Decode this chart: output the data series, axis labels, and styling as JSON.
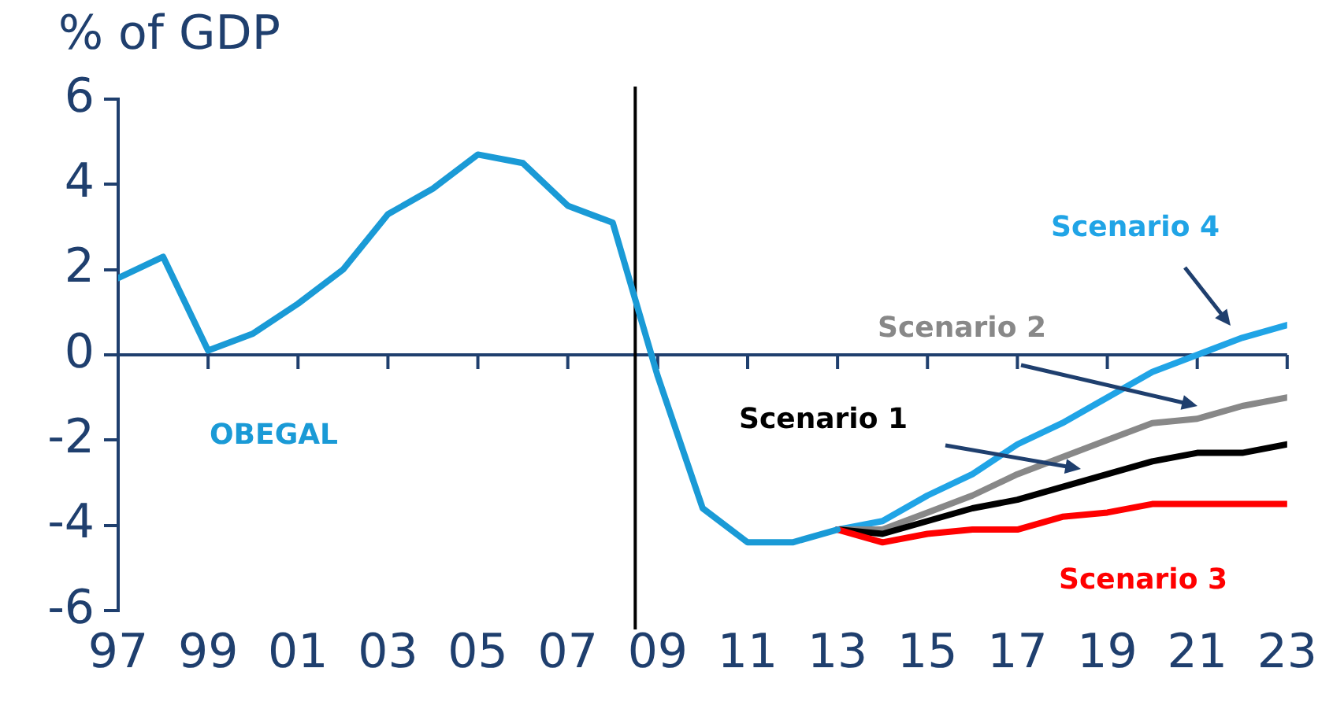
{
  "chart_data": {
    "type": "line",
    "ylabel": "% of GDP",
    "x": [
      1997,
      1998,
      1999,
      2000,
      2001,
      2002,
      2003,
      2004,
      2005,
      2006,
      2007,
      2008,
      2009,
      2010,
      2011,
      2012,
      2013,
      2014,
      2015,
      2016,
      2017,
      2018,
      2019,
      2020,
      2021,
      2022,
      2023
    ],
    "series": [
      {
        "name": "OBEGAL",
        "color": "#1a9ad6",
        "values": [
          1.8,
          2.3,
          0.1,
          0.5,
          1.2,
          2.0,
          3.3,
          3.9,
          4.7,
          4.5,
          3.5,
          3.1,
          -0.5,
          -3.6,
          -4.4,
          -4.4,
          -4.1,
          null,
          null,
          null,
          null,
          null,
          null,
          null,
          null,
          null,
          null
        ]
      },
      {
        "name": "Scenario 3",
        "color": "#ff0000",
        "values": [
          null,
          null,
          null,
          null,
          null,
          null,
          null,
          null,
          null,
          null,
          null,
          null,
          null,
          null,
          null,
          null,
          -4.1,
          -4.4,
          -4.2,
          -4.1,
          -4.1,
          -3.8,
          -3.7,
          -3.5,
          -3.5,
          -3.5,
          -3.5
        ]
      },
      {
        "name": "Scenario 1",
        "color": "#000000",
        "values": [
          null,
          null,
          null,
          null,
          null,
          null,
          null,
          null,
          null,
          null,
          null,
          null,
          null,
          null,
          null,
          null,
          -4.1,
          -4.2,
          -3.9,
          -3.6,
          -3.4,
          -3.1,
          -2.8,
          -2.5,
          -2.3,
          -2.3,
          -2.1
        ]
      },
      {
        "name": "Scenario 2",
        "color": "#888888",
        "values": [
          null,
          null,
          null,
          null,
          null,
          null,
          null,
          null,
          null,
          null,
          null,
          null,
          null,
          null,
          null,
          null,
          -4.1,
          -4.1,
          -3.7,
          -3.3,
          -2.8,
          -2.4,
          -2.0,
          -1.6,
          -1.5,
          -1.2,
          -1.0
        ]
      },
      {
        "name": "Scenario 4",
        "color": "#20a4e6",
        "values": [
          null,
          null,
          null,
          null,
          null,
          null,
          null,
          null,
          null,
          null,
          null,
          null,
          null,
          null,
          null,
          null,
          -4.1,
          -3.9,
          -3.3,
          -2.8,
          -2.1,
          -1.6,
          -1.0,
          -0.4,
          0.0,
          0.4,
          0.7
        ]
      }
    ],
    "xlim": [
      1997,
      2023
    ],
    "xticks": [
      {
        "value": 1997,
        "label": "97"
      },
      {
        "value": 1999,
        "label": "99"
      },
      {
        "value": 2001,
        "label": "01"
      },
      {
        "value": 2003,
        "label": "03"
      },
      {
        "value": 2005,
        "label": "05"
      },
      {
        "value": 2007,
        "label": "07"
      },
      {
        "value": 2009,
        "label": "09"
      },
      {
        "value": 2011,
        "label": "11"
      },
      {
        "value": 2013,
        "label": "13"
      },
      {
        "value": 2015,
        "label": "15"
      },
      {
        "value": 2017,
        "label": "17"
      },
      {
        "value": 2019,
        "label": "19"
      },
      {
        "value": 2021,
        "label": "21"
      },
      {
        "value": 2023,
        "label": "23"
      }
    ],
    "ylim": [
      -6,
      6
    ],
    "yticks": [
      -6,
      -4,
      -2,
      0,
      2,
      4,
      6
    ],
    "ref_lines": [
      {
        "axis": "y",
        "value": 0,
        "color": "#1f3f6e"
      },
      {
        "axis": "x",
        "value": 2008.5,
        "color": "#000000"
      }
    ],
    "grid": false,
    "legend": false,
    "marker": "none",
    "line_style": "solid"
  }
}
